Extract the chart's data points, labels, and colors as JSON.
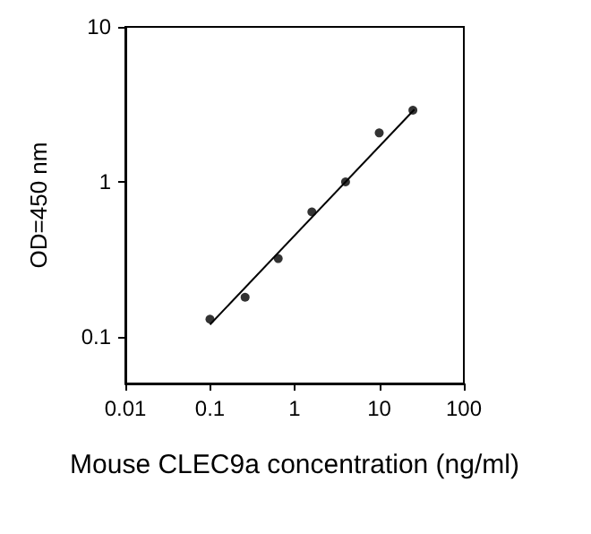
{
  "chart_data": {
    "type": "scatter",
    "xlabel": "Mouse CLEC9a concentration (ng/ml)",
    "ylabel": "OD=450 nm",
    "log": "xy",
    "xlim": [
      0.01,
      100
    ],
    "xticks": [
      0.01,
      0.1,
      1,
      10,
      100
    ],
    "ylim": [
      0.05,
      10
    ],
    "yticks": [
      0.1,
      1,
      10
    ],
    "grid": false,
    "series": [
      {
        "color": "#000000",
        "marker": "circle",
        "x": [
          0.1,
          0.26,
          0.64,
          1.6,
          4.0,
          10,
          25
        ],
        "values": [
          0.13,
          0.18,
          0.32,
          0.64,
          1.0,
          2.07,
          2.9
        ]
      },
      {
        "type": "line",
        "color": "#000000",
        "marker": "none",
        "line_style": "solid",
        "x": [
          0.1,
          26
        ],
        "values": [
          0.12,
          2.93
        ]
      }
    ]
  }
}
